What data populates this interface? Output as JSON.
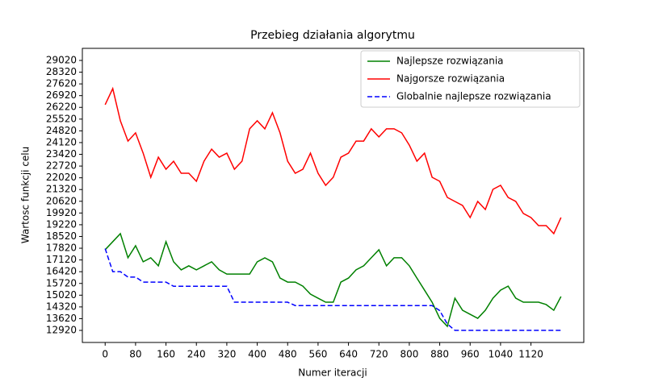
{
  "chart_data": {
    "type": "line",
    "title": "Przebieg działania algorytmu",
    "xlabel": "Numer iteracji",
    "ylabel": "Wartosc funkcji celu",
    "x": [
      0,
      20,
      40,
      60,
      80,
      100,
      120,
      140,
      160,
      180,
      200,
      220,
      240,
      260,
      280,
      300,
      320,
      340,
      360,
      380,
      400,
      420,
      440,
      460,
      480,
      500,
      520,
      540,
      560,
      580,
      600,
      620,
      640,
      660,
      680,
      700,
      720,
      740,
      760,
      780,
      800,
      820,
      840,
      860,
      880,
      900,
      920,
      940,
      960,
      980,
      1000,
      1020,
      1040,
      1060,
      1080,
      1100,
      1120,
      1140,
      1160,
      1180,
      1199
    ],
    "series": [
      {
        "name": "Najlepsze rozwiązania",
        "color": "#008000",
        "dash": false,
        "values": [
          17730,
          18210,
          18690,
          17250,
          17970,
          17010,
          17250,
          16770,
          18210,
          17010,
          16530,
          16770,
          16530,
          16770,
          17010,
          16530,
          16280,
          16280,
          16280,
          16280,
          17010,
          17250,
          17010,
          16040,
          15800,
          15800,
          15560,
          15080,
          14840,
          14600,
          14600,
          15800,
          16040,
          16530,
          16770,
          17250,
          17730,
          16770,
          17250,
          17250,
          16770,
          16040,
          15320,
          14600,
          13640,
          13160,
          14840,
          14120,
          13880,
          13640,
          14120,
          14840,
          15320,
          15560,
          14840,
          14600,
          14600,
          14600,
          14460,
          14120,
          14940
        ]
      },
      {
        "name": "Najgorsze rozwiązania",
        "color": "#ff0000",
        "dash": false,
        "values": [
          26380,
          27340,
          25420,
          24210,
          24700,
          23490,
          22050,
          23250,
          22530,
          23010,
          22290,
          22290,
          21810,
          23010,
          23730,
          23250,
          23490,
          22530,
          23010,
          24940,
          25420,
          24940,
          25900,
          24700,
          23010,
          22290,
          22530,
          23490,
          22290,
          21570,
          22050,
          23250,
          23490,
          24210,
          24210,
          24940,
          24460,
          24940,
          24940,
          24700,
          23970,
          23010,
          23490,
          22050,
          21810,
          20850,
          20610,
          20370,
          19650,
          20610,
          20130,
          21330,
          21570,
          20850,
          20610,
          19890,
          19650,
          19170,
          19170,
          18690,
          19650
        ]
      },
      {
        "name": "Globalnie najlepsze rozwiązania",
        "color": "#0000ff",
        "dash": true,
        "values": [
          17800,
          16420,
          16420,
          16100,
          16100,
          15800,
          15800,
          15800,
          15800,
          15550,
          15550,
          15550,
          15550,
          15550,
          15550,
          15550,
          15550,
          14600,
          14600,
          14600,
          14600,
          14600,
          14600,
          14600,
          14600,
          14400,
          14400,
          14400,
          14400,
          14400,
          14400,
          14400,
          14400,
          14400,
          14400,
          14400,
          14400,
          14400,
          14400,
          14400,
          14400,
          14400,
          14400,
          14400,
          14100,
          13300,
          12920,
          12920,
          12920,
          12920,
          12920,
          12920,
          12920,
          12920,
          12920,
          12920,
          12920,
          12920,
          12920,
          12920,
          12920
        ]
      }
    ],
    "xlim": [
      -59.95,
      1258.95
    ],
    "ylim": [
      12200,
      29740
    ],
    "xticks": [
      0,
      80,
      160,
      240,
      320,
      400,
      480,
      560,
      640,
      720,
      800,
      880,
      960,
      1040,
      1120
    ],
    "yticks": [
      12920,
      13620,
      14320,
      15020,
      15720,
      16420,
      17120,
      17820,
      18520,
      19220,
      19920,
      20620,
      21320,
      22020,
      22720,
      23420,
      24120,
      24820,
      25520,
      26220,
      26920,
      27620,
      28320,
      29020
    ],
    "legend": "upper right"
  }
}
